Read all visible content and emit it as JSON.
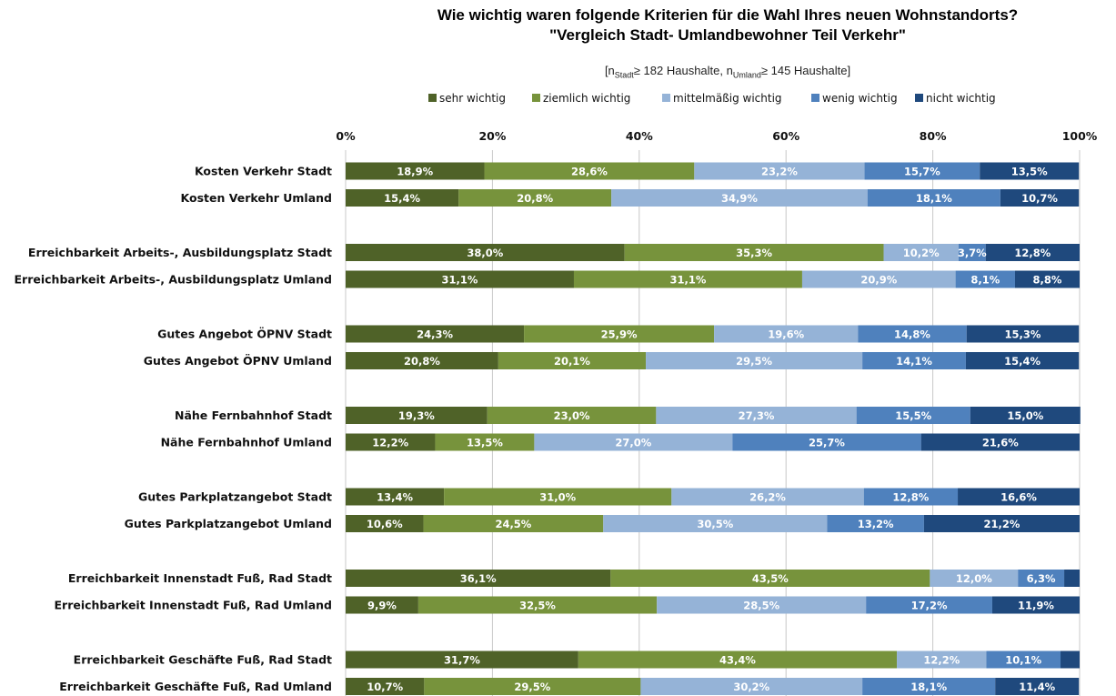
{
  "title_line1": "Wie wichtig waren folgende Kriterien für die Wahl Ihres neuen Wohnstandorts?",
  "title_line2": "\"Vergleich Stadt- Umlandbewohner Teil Verkehr\"",
  "sample_note": {
    "open": "[n",
    "sub1": "Stadt",
    "mid": "≥ 182 Haushalte, n",
    "sub2": "Umland",
    "close": "≥ 145 Haushalte]"
  },
  "chart_data": {
    "type": "bar",
    "orientation": "horizontal",
    "stacked": "percent",
    "xlim": [
      0,
      100
    ],
    "x_ticks": [
      "0%",
      "20%",
      "40%",
      "60%",
      "80%",
      "100%"
    ],
    "grid": true,
    "legend_position": "top",
    "categories": [
      "Kosten Verkehr Stadt",
      "Kosten Verkehr Umland",
      "Erreichbarkeit Arbeits-, Ausbildungsplatz Stadt",
      "Erreichbarkeit Arbeits-, Ausbildungsplatz Umland",
      "Gutes Angebot ÖPNV Stadt",
      "Gutes Angebot ÖPNV Umland",
      "Nähe Fernbahnhof Stadt",
      "Nähe Fernbahnhof Umland",
      "Gutes Parkplatzangebot Stadt",
      "Gutes Parkplatzangebot Umland",
      "Erreichbarkeit Innenstadt Fuß, Rad Stadt",
      "Erreichbarkeit Innenstadt Fuß, Rad Umland",
      "Erreichbarkeit Geschäfte Fuß, Rad Stadt",
      "Erreichbarkeit Geschäfte Fuß, Rad Umland"
    ],
    "series": [
      {
        "name": "sehr wichtig",
        "color": "#4f6228",
        "values": [
          18.9,
          15.4,
          38.0,
          31.1,
          24.3,
          20.8,
          19.3,
          12.2,
          13.4,
          10.6,
          36.1,
          9.9,
          31.7,
          10.7
        ],
        "labels": [
          "18,9%",
          "15,4%",
          "38,0%",
          "31,1%",
          "24,3%",
          "20,8%",
          "19,3%",
          "12,2%",
          "13,4%",
          "10,6%",
          "36,1%",
          "9,9%",
          "31,7%",
          "10,7%"
        ]
      },
      {
        "name": "ziemlich wichtig",
        "color": "#77933c",
        "values": [
          28.6,
          20.8,
          35.3,
          31.1,
          25.9,
          20.1,
          23.0,
          13.5,
          31.0,
          24.5,
          43.5,
          32.5,
          43.4,
          29.5
        ],
        "labels": [
          "28,6%",
          "20,8%",
          "35,3%",
          "31,1%",
          "25,9%",
          "20,1%",
          "23,0%",
          "13,5%",
          "31,0%",
          "24,5%",
          "43,5%",
          "32,5%",
          "43,4%",
          "29,5%"
        ]
      },
      {
        "name": "mittelmäßig wichtig",
        "color": "#95b3d7",
        "values": [
          23.2,
          34.9,
          10.2,
          20.9,
          19.6,
          29.5,
          27.3,
          27.0,
          26.2,
          30.5,
          12.0,
          28.5,
          12.2,
          30.2
        ],
        "labels": [
          "23,2%",
          "34,9%",
          "10,2%",
          "20,9%",
          "19,6%",
          "29,5%",
          "27,3%",
          "27,0%",
          "26,2%",
          "30,5%",
          "12,0%",
          "28,5%",
          "12,2%",
          "30,2%"
        ]
      },
      {
        "name": "wenig wichtig",
        "color": "#4f81bd",
        "values": [
          15.7,
          18.1,
          3.7,
          8.1,
          14.8,
          14.1,
          15.5,
          25.7,
          12.8,
          13.2,
          6.3,
          17.2,
          10.1,
          18.1
        ],
        "labels": [
          "15,7%",
          "18,1%",
          "3,7%",
          "8,1%",
          "14,8%",
          "14,1%",
          "15,5%",
          "25,7%",
          "12,8%",
          "13,2%",
          "6,3%",
          "17,2%",
          "10,1%",
          "18,1%"
        ]
      },
      {
        "name": "nicht wichtig",
        "color": "#1f497d",
        "values": [
          13.5,
          10.7,
          12.8,
          8.8,
          15.3,
          15.4,
          15.0,
          21.6,
          16.6,
          21.2,
          2.1,
          11.9,
          2.6,
          11.4
        ],
        "labels": [
          "13,5%",
          "10,7%",
          "12,8%",
          "8,8%",
          "15,3%",
          "15,4%",
          "15,0%",
          "21,6%",
          "16,6%",
          "21,2%",
          "",
          "11,9%",
          "",
          "11,4%"
        ]
      }
    ]
  }
}
